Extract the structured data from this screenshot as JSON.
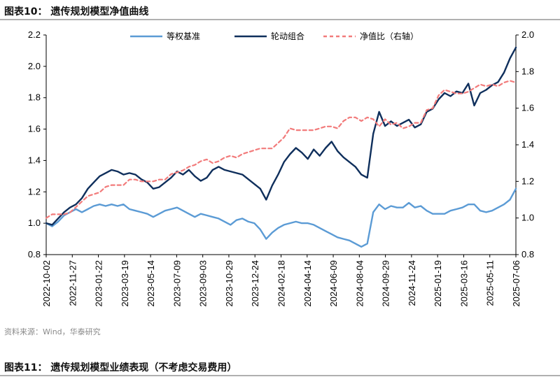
{
  "figure": {
    "title": "图表10：  遗传规划模型净值曲线",
    "source": "资料来源：Wind，华泰研究",
    "next_title": "图表11：  遗传规划模型业绩表现（不考虑交易费用）"
  },
  "chart_data": {
    "type": "line",
    "title": "遗传规划模型净值曲线",
    "x_tick_labels": [
      "2022-10-02",
      "2022-11-27",
      "2023-01-22",
      "2023-03-19",
      "2023-05-14",
      "2023-07-09",
      "2023-09-03",
      "2023-10-29",
      "2023-12-24",
      "2024-02-18",
      "2024-04-14",
      "2024-06-09",
      "2024-08-04",
      "2024-09-29",
      "2024-11-24",
      "2025-01-19",
      "2025-03-16",
      "2025-05-11",
      "2025-07-06"
    ],
    "y_left": {
      "min": 0.8,
      "max": 2.2,
      "ticks": [
        "0.8",
        "1.0",
        "1.2",
        "1.4",
        "1.6",
        "1.8",
        "2.0",
        "2.2"
      ]
    },
    "y_right": {
      "min": 0.8,
      "max": 2.0,
      "ticks": [
        "0.8",
        "1.0",
        "1.2",
        "1.4",
        "1.6",
        "1.8",
        "2.0"
      ]
    },
    "legend": [
      "等权基准",
      "轮动组合",
      "净值比（右轴）"
    ],
    "series": [
      {
        "name": "等权基准",
        "axis": "left",
        "color": "#5b9bd5",
        "style": "solid",
        "points": [
          [
            0,
            1.0
          ],
          [
            1,
            0.98
          ],
          [
            2,
            1.01
          ],
          [
            3,
            1.05
          ],
          [
            4,
            1.07
          ],
          [
            5,
            1.09
          ],
          [
            6,
            1.07
          ],
          [
            7,
            1.09
          ],
          [
            8,
            1.11
          ],
          [
            9,
            1.12
          ],
          [
            10,
            1.11
          ],
          [
            11,
            1.12
          ],
          [
            12,
            1.11
          ],
          [
            13,
            1.12
          ],
          [
            14,
            1.09
          ],
          [
            15,
            1.08
          ],
          [
            16,
            1.07
          ],
          [
            17,
            1.06
          ],
          [
            18,
            1.04
          ],
          [
            19,
            1.06
          ],
          [
            20,
            1.08
          ],
          [
            21,
            1.09
          ],
          [
            22,
            1.1
          ],
          [
            23,
            1.08
          ],
          [
            24,
            1.06
          ],
          [
            25,
            1.04
          ],
          [
            26,
            1.06
          ],
          [
            27,
            1.05
          ],
          [
            28,
            1.04
          ],
          [
            29,
            1.03
          ],
          [
            30,
            1.01
          ],
          [
            31,
            0.99
          ],
          [
            32,
            1.02
          ],
          [
            33,
            1.03
          ],
          [
            34,
            1.01
          ],
          [
            35,
            1.0
          ],
          [
            36,
            0.96
          ],
          [
            37,
            0.9
          ],
          [
            38,
            0.94
          ],
          [
            39,
            0.97
          ],
          [
            40,
            0.99
          ],
          [
            41,
            1.0
          ],
          [
            42,
            1.01
          ],
          [
            43,
            1.0
          ],
          [
            44,
            1.0
          ],
          [
            45,
            0.99
          ],
          [
            46,
            0.97
          ],
          [
            47,
            0.95
          ],
          [
            48,
            0.93
          ],
          [
            49,
            0.91
          ],
          [
            50,
            0.9
          ],
          [
            51,
            0.89
          ],
          [
            52,
            0.87
          ],
          [
            53,
            0.85
          ],
          [
            54,
            0.87
          ],
          [
            55,
            1.07
          ],
          [
            56,
            1.12
          ],
          [
            57,
            1.09
          ],
          [
            58,
            1.11
          ],
          [
            59,
            1.1
          ],
          [
            60,
            1.1
          ],
          [
            61,
            1.13
          ],
          [
            62,
            1.1
          ],
          [
            63,
            1.11
          ],
          [
            64,
            1.08
          ],
          [
            65,
            1.06
          ],
          [
            66,
            1.06
          ],
          [
            67,
            1.06
          ],
          [
            68,
            1.08
          ],
          [
            69,
            1.09
          ],
          [
            70,
            1.1
          ],
          [
            71,
            1.12
          ],
          [
            72,
            1.12
          ],
          [
            73,
            1.08
          ],
          [
            74,
            1.07
          ],
          [
            75,
            1.08
          ],
          [
            76,
            1.1
          ],
          [
            77,
            1.12
          ],
          [
            78,
            1.15
          ],
          [
            79,
            1.22
          ]
        ]
      },
      {
        "name": "轮动组合",
        "axis": "left",
        "color": "#0f2f5c",
        "style": "solid",
        "points": [
          [
            0,
            1.0
          ],
          [
            1,
            0.99
          ],
          [
            2,
            1.03
          ],
          [
            3,
            1.07
          ],
          [
            4,
            1.1
          ],
          [
            5,
            1.12
          ],
          [
            6,
            1.16
          ],
          [
            7,
            1.22
          ],
          [
            8,
            1.26
          ],
          [
            9,
            1.3
          ],
          [
            10,
            1.32
          ],
          [
            11,
            1.34
          ],
          [
            12,
            1.33
          ],
          [
            13,
            1.31
          ],
          [
            14,
            1.32
          ],
          [
            15,
            1.31
          ],
          [
            16,
            1.28
          ],
          [
            17,
            1.26
          ],
          [
            18,
            1.22
          ],
          [
            19,
            1.23
          ],
          [
            20,
            1.26
          ],
          [
            21,
            1.29
          ],
          [
            22,
            1.33
          ],
          [
            23,
            1.31
          ],
          [
            24,
            1.34
          ],
          [
            25,
            1.3
          ],
          [
            26,
            1.27
          ],
          [
            27,
            1.29
          ],
          [
            28,
            1.34
          ],
          [
            29,
            1.36
          ],
          [
            30,
            1.34
          ],
          [
            31,
            1.33
          ],
          [
            32,
            1.32
          ],
          [
            33,
            1.31
          ],
          [
            34,
            1.28
          ],
          [
            35,
            1.25
          ],
          [
            36,
            1.22
          ],
          [
            37,
            1.15
          ],
          [
            38,
            1.24
          ],
          [
            39,
            1.31
          ],
          [
            40,
            1.39
          ],
          [
            41,
            1.44
          ],
          [
            42,
            1.48
          ],
          [
            43,
            1.45
          ],
          [
            44,
            1.41
          ],
          [
            45,
            1.47
          ],
          [
            46,
            1.43
          ],
          [
            47,
            1.48
          ],
          [
            48,
            1.52
          ],
          [
            49,
            1.46
          ],
          [
            50,
            1.42
          ],
          [
            51,
            1.39
          ],
          [
            52,
            1.36
          ],
          [
            53,
            1.31
          ],
          [
            54,
            1.29
          ],
          [
            55,
            1.57
          ],
          [
            56,
            1.71
          ],
          [
            57,
            1.62
          ],
          [
            58,
            1.65
          ],
          [
            59,
            1.62
          ],
          [
            60,
            1.64
          ],
          [
            61,
            1.66
          ],
          [
            62,
            1.61
          ],
          [
            63,
            1.63
          ],
          [
            64,
            1.71
          ],
          [
            65,
            1.73
          ],
          [
            66,
            1.79
          ],
          [
            67,
            1.83
          ],
          [
            68,
            1.81
          ],
          [
            69,
            1.84
          ],
          [
            70,
            1.83
          ],
          [
            71,
            1.89
          ],
          [
            72,
            1.75
          ],
          [
            73,
            1.83
          ],
          [
            74,
            1.85
          ],
          [
            75,
            1.88
          ],
          [
            76,
            1.9
          ],
          [
            77,
            1.96
          ],
          [
            78,
            2.05
          ],
          [
            79,
            2.12
          ]
        ]
      },
      {
        "name": "净值比（右轴）",
        "axis": "right",
        "color": "#f27b7b",
        "style": "dashed",
        "points": [
          [
            0,
            1.0
          ],
          [
            1,
            1.02
          ],
          [
            2,
            1.02
          ],
          [
            3,
            1.02
          ],
          [
            4,
            1.03
          ],
          [
            5,
            1.06
          ],
          [
            6,
            1.09
          ],
          [
            7,
            1.12
          ],
          [
            8,
            1.13
          ],
          [
            9,
            1.14
          ],
          [
            10,
            1.17
          ],
          [
            11,
            1.18
          ],
          [
            12,
            1.18
          ],
          [
            13,
            1.18
          ],
          [
            14,
            1.21
          ],
          [
            15,
            1.21
          ],
          [
            16,
            1.2
          ],
          [
            17,
            1.2
          ],
          [
            18,
            1.2
          ],
          [
            19,
            1.21
          ],
          [
            20,
            1.21
          ],
          [
            21,
            1.24
          ],
          [
            22,
            1.25
          ],
          [
            23,
            1.26
          ],
          [
            24,
            1.28
          ],
          [
            25,
            1.29
          ],
          [
            26,
            1.31
          ],
          [
            27,
            1.32
          ],
          [
            28,
            1.3
          ],
          [
            29,
            1.31
          ],
          [
            30,
            1.33
          ],
          [
            31,
            1.34
          ],
          [
            32,
            1.33
          ],
          [
            33,
            1.35
          ],
          [
            34,
            1.36
          ],
          [
            35,
            1.37
          ],
          [
            36,
            1.38
          ],
          [
            37,
            1.38
          ],
          [
            38,
            1.38
          ],
          [
            39,
            1.41
          ],
          [
            40,
            1.44
          ],
          [
            41,
            1.49
          ],
          [
            42,
            1.48
          ],
          [
            43,
            1.48
          ],
          [
            44,
            1.48
          ],
          [
            45,
            1.48
          ],
          [
            46,
            1.49
          ],
          [
            47,
            1.5
          ],
          [
            48,
            1.5
          ],
          [
            49,
            1.49
          ],
          [
            50,
            1.53
          ],
          [
            51,
            1.55
          ],
          [
            52,
            1.55
          ],
          [
            53,
            1.53
          ],
          [
            54,
            1.55
          ],
          [
            55,
            1.54
          ],
          [
            56,
            1.5
          ],
          [
            57,
            1.54
          ],
          [
            58,
            1.51
          ],
          [
            59,
            1.52
          ],
          [
            60,
            1.49
          ],
          [
            61,
            1.5
          ],
          [
            62,
            1.52
          ],
          [
            63,
            1.52
          ],
          [
            64,
            1.59
          ],
          [
            65,
            1.6
          ],
          [
            66,
            1.67
          ],
          [
            67,
            1.7
          ],
          [
            68,
            1.69
          ],
          [
            69,
            1.68
          ],
          [
            70,
            1.68
          ],
          [
            71,
            1.69
          ],
          [
            72,
            1.71
          ],
          [
            73,
            1.73
          ],
          [
            74,
            1.72
          ],
          [
            75,
            1.73
          ],
          [
            76,
            1.72
          ],
          [
            77,
            1.74
          ],
          [
            78,
            1.75
          ],
          [
            79,
            1.74
          ]
        ]
      }
    ]
  }
}
